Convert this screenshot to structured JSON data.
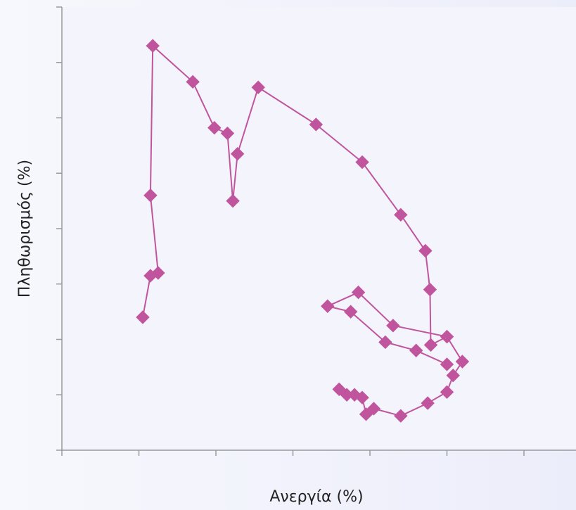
{
  "chart_data": {
    "type": "scatter",
    "title": "",
    "xlabel": "Ανεργία (%)",
    "ylabel": "Πληθωρισμός (%)",
    "xlim": [
      0,
      6
    ],
    "ylim": [
      0,
      8
    ],
    "grid": false,
    "legend": "none",
    "tick_labels_visible": false,
    "series": [
      {
        "connected": true,
        "color": "#c0559e",
        "marker": "diamond",
        "points": [
          [
            1.05,
            2.4
          ],
          [
            1.15,
            3.15
          ],
          [
            1.25,
            3.2
          ],
          [
            1.15,
            4.6
          ],
          [
            1.18,
            7.3
          ],
          [
            1.7,
            6.65
          ],
          [
            1.98,
            5.82
          ],
          [
            2.15,
            5.72
          ],
          [
            2.22,
            4.5
          ],
          [
            2.28,
            5.35
          ],
          [
            2.55,
            6.55
          ],
          [
            3.3,
            5.88
          ],
          [
            3.9,
            5.2
          ],
          [
            4.4,
            4.25
          ],
          [
            4.72,
            3.6
          ],
          [
            4.78,
            2.9
          ],
          [
            4.79,
            1.9
          ],
          [
            5.0,
            2.05
          ],
          [
            5.2,
            1.6
          ],
          [
            5.08,
            1.35
          ],
          [
            5.0,
            1.05
          ],
          [
            4.75,
            0.85
          ],
          [
            4.4,
            0.62
          ],
          [
            4.05,
            0.75
          ],
          [
            3.95,
            0.65
          ],
          [
            3.9,
            0.95
          ],
          [
            3.8,
            1.0
          ],
          [
            3.7,
            1.0
          ],
          [
            3.6,
            1.1
          ]
        ]
      },
      {
        "connected": true,
        "color": "#c0559e",
        "marker": "diamond",
        "points": [
          [
            5.0,
            1.55
          ],
          [
            4.6,
            1.8
          ],
          [
            4.2,
            1.95
          ],
          [
            3.75,
            2.5
          ],
          [
            3.45,
            2.6
          ],
          [
            3.85,
            2.85
          ],
          [
            4.3,
            2.25
          ],
          [
            5.0,
            2.05
          ]
        ]
      }
    ]
  }
}
